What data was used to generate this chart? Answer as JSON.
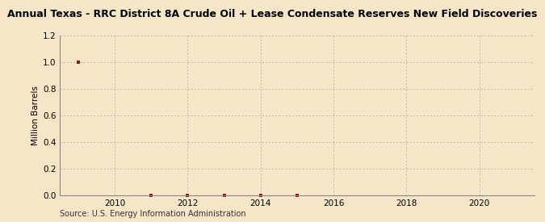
{
  "title": "Annual Texas - RRC District 8A Crude Oil + Lease Condensate Reserves New Field Discoveries",
  "ylabel": "Million Barrels",
  "source": "Source: U.S. Energy Information Administration",
  "background_color": "#f5e6c8",
  "plot_background": "#f5e6c8",
  "grid_color": "#aaaaaa",
  "marker_color": "#8b1a1a",
  "years": [
    2009,
    2011,
    2012,
    2013,
    2014,
    2015
  ],
  "values": [
    1.0,
    0.0,
    0.0,
    0.0,
    0.0,
    0.0
  ],
  "xlim": [
    2008.5,
    2021.5
  ],
  "ylim": [
    0.0,
    1.2
  ],
  "yticks": [
    0.0,
    0.2,
    0.4,
    0.6,
    0.8,
    1.0,
    1.2
  ],
  "xticks": [
    2010,
    2012,
    2014,
    2016,
    2018,
    2020
  ],
  "title_fontsize": 9.0,
  "label_fontsize": 7.5,
  "tick_fontsize": 7.5,
  "source_fontsize": 7.0
}
